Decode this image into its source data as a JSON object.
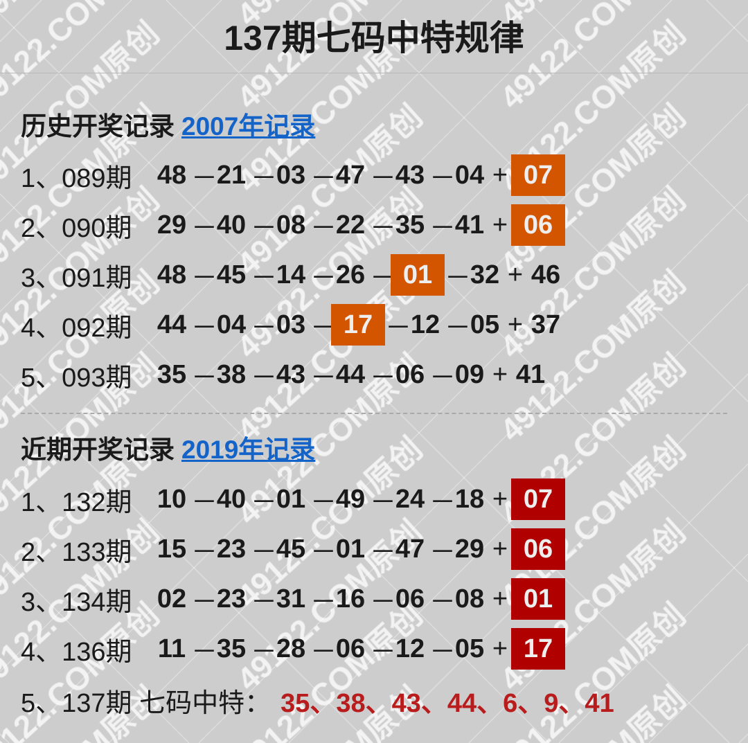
{
  "title": "137期七码中特规律",
  "watermark": "49122.COM原创",
  "colors": {
    "history_box": "#d45500",
    "recent_box": "#b00000",
    "link": "#1463c8",
    "prediction": "#b81c1c"
  },
  "history": {
    "heading": "历史开奖记录",
    "link": "2007年记录",
    "rows": [
      {
        "index": "1、",
        "period": "089期",
        "numbers": [
          "48",
          "21",
          "03",
          "47",
          "43",
          "04"
        ],
        "special": "07",
        "highlight": 6
      },
      {
        "index": "2、",
        "period": "090期",
        "numbers": [
          "29",
          "40",
          "08",
          "22",
          "35",
          "41"
        ],
        "special": "06",
        "highlight": 6
      },
      {
        "index": "3、",
        "period": "091期",
        "numbers": [
          "48",
          "45",
          "14",
          "26",
          "01",
          "32"
        ],
        "special": "46",
        "highlight": 4
      },
      {
        "index": "4、",
        "period": "092期",
        "numbers": [
          "44",
          "04",
          "03",
          "17",
          "12",
          "05"
        ],
        "special": "37",
        "highlight": 3
      },
      {
        "index": "5、",
        "period": "093期",
        "numbers": [
          "35",
          "38",
          "43",
          "44",
          "06",
          "09"
        ],
        "special": "41",
        "highlight": null
      }
    ]
  },
  "recent": {
    "heading": "近期开奖记录",
    "link": "2019年记录",
    "rows": [
      {
        "index": "1、",
        "period": "132期",
        "numbers": [
          "10",
          "40",
          "01",
          "49",
          "24",
          "18"
        ],
        "special": "07",
        "highlight": 6
      },
      {
        "index": "2、",
        "period": "133期",
        "numbers": [
          "15",
          "23",
          "45",
          "01",
          "47",
          "29"
        ],
        "special": "06",
        "highlight": 6
      },
      {
        "index": "3、",
        "period": "134期",
        "numbers": [
          "02",
          "23",
          "31",
          "16",
          "06",
          "08"
        ],
        "special": "01",
        "highlight": 6
      },
      {
        "index": "4、",
        "period": "136期",
        "numbers": [
          "11",
          "35",
          "28",
          "06",
          "12",
          "05"
        ],
        "special": "17",
        "highlight": 6
      }
    ],
    "prediction": {
      "label": "5、137期 七码中特：",
      "numbers": "35、38、43、44、6、9、41"
    }
  }
}
